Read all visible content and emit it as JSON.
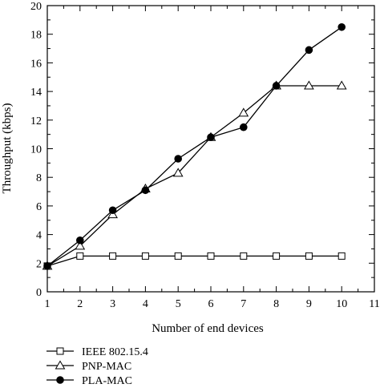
{
  "chart_data": {
    "type": "line",
    "xlabel": "Number of end devices",
    "ylabel": "Throughput (kbps)",
    "xlim": [
      1,
      11
    ],
    "ylim": [
      0,
      20
    ],
    "x_ticks": [
      1,
      2,
      3,
      4,
      5,
      6,
      7,
      8,
      9,
      10,
      11
    ],
    "y_ticks": [
      0,
      2,
      4,
      6,
      8,
      10,
      12,
      14,
      16,
      18,
      20
    ],
    "grid": false,
    "legend_position": "below plot, left",
    "series": [
      {
        "name": "IEEE 802.15.4",
        "marker": "open-square",
        "color": "#000000",
        "x": [
          1,
          2,
          3,
          4,
          5,
          6,
          7,
          8,
          9,
          10
        ],
        "values": [
          1.8,
          2.5,
          2.5,
          2.5,
          2.5,
          2.5,
          2.5,
          2.5,
          2.5,
          2.5
        ]
      },
      {
        "name": "PNP-MAC",
        "marker": "open-triangle",
        "color": "#000000",
        "x": [
          1,
          2,
          3,
          4,
          5,
          6,
          7,
          8,
          9,
          10
        ],
        "values": [
          1.8,
          3.2,
          5.4,
          7.2,
          8.3,
          10.8,
          12.5,
          14.4,
          14.4,
          14.4
        ]
      },
      {
        "name": "PLA-MAC",
        "marker": "filled-circle",
        "color": "#000000",
        "x": [
          1,
          2,
          3,
          4,
          5,
          6,
          7,
          8,
          9,
          10
        ],
        "values": [
          1.8,
          3.6,
          5.7,
          7.1,
          9.3,
          10.8,
          11.5,
          14.4,
          16.9,
          18.5
        ]
      }
    ]
  }
}
